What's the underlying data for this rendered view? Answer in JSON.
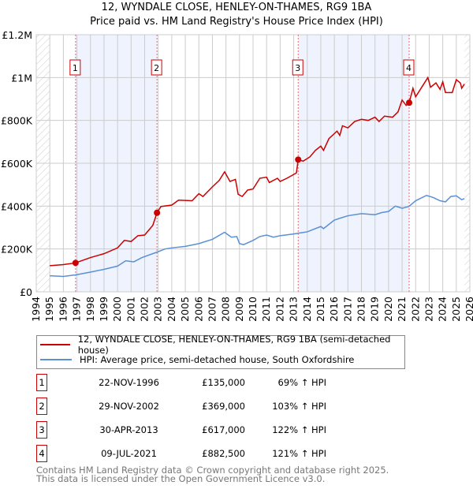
{
  "title": "12, WYNDALE CLOSE, HENLEY-ON-THAMES, RG9 1BA",
  "subtitle": "Price paid vs. HM Land Registry's House Price Index (HPI)",
  "chart_data": {
    "type": "line",
    "xlim": [
      1994,
      2026
    ],
    "ylim": [
      0,
      1200000
    ],
    "yticks": [
      {
        "v": 0,
        "label": "£0"
      },
      {
        "v": 200000,
        "label": "£200K"
      },
      {
        "v": 400000,
        "label": "£400K"
      },
      {
        "v": 600000,
        "label": "£600K"
      },
      {
        "v": 800000,
        "label": "£800K"
      },
      {
        "v": 1000000,
        "label": "£1M"
      },
      {
        "v": 1200000,
        "label": "£1.2M"
      }
    ],
    "xticks": [
      "1994",
      "1995",
      "1996",
      "1997",
      "1998",
      "1999",
      "2000",
      "2001",
      "2002",
      "2003",
      "2004",
      "2005",
      "2006",
      "2007",
      "2008",
      "2009",
      "2010",
      "2011",
      "2012",
      "2013",
      "2014",
      "2015",
      "2016",
      "2017",
      "2018",
      "2019",
      "2020",
      "2021",
      "2022",
      "2023",
      "2024",
      "2025",
      "2026"
    ],
    "grid": true,
    "shaded_ranges": [
      [
        1996.9,
        2002.91
      ],
      [
        2013.33,
        2021.52
      ]
    ],
    "hatched_ranges": [
      [
        1994,
        1995
      ],
      [
        2025.6,
        2026
      ]
    ],
    "series": [
      {
        "name": "12, WYNDALE CLOSE, HENLEY-ON-THAMES, RG9 1BA (semi-detached house)",
        "color": "#cc0000",
        "points": [
          [
            1995,
            122000
          ],
          [
            1996,
            127000
          ],
          [
            1996.9,
            135000
          ],
          [
            1998,
            160000
          ],
          [
            1999,
            178000
          ],
          [
            2000,
            205000
          ],
          [
            2000.5,
            240000
          ],
          [
            2001,
            235000
          ],
          [
            2001.5,
            262000
          ],
          [
            2002,
            265000
          ],
          [
            2002.6,
            310000
          ],
          [
            2002.91,
            369000
          ],
          [
            2003.2,
            398000
          ],
          [
            2004,
            405000
          ],
          [
            2004.5,
            428000
          ],
          [
            2005.5,
            425000
          ],
          [
            2006,
            458000
          ],
          [
            2006.3,
            445000
          ],
          [
            2007,
            490000
          ],
          [
            2007.5,
            520000
          ],
          [
            2007.9,
            560000
          ],
          [
            2008.3,
            515000
          ],
          [
            2008.7,
            525000
          ],
          [
            2008.9,
            455000
          ],
          [
            2009.2,
            445000
          ],
          [
            2009.6,
            475000
          ],
          [
            2010,
            480000
          ],
          [
            2010.5,
            530000
          ],
          [
            2011,
            535000
          ],
          [
            2011.2,
            510000
          ],
          [
            2011.8,
            530000
          ],
          [
            2012,
            515000
          ],
          [
            2012.5,
            530000
          ],
          [
            2013.2,
            555000
          ],
          [
            2013.33,
            617000
          ],
          [
            2013.7,
            610000
          ],
          [
            2014.2,
            630000
          ],
          [
            2014.6,
            660000
          ],
          [
            2015,
            680000
          ],
          [
            2015.2,
            660000
          ],
          [
            2015.6,
            715000
          ],
          [
            2016.2,
            750000
          ],
          [
            2016.4,
            730000
          ],
          [
            2016.6,
            775000
          ],
          [
            2017,
            765000
          ],
          [
            2017.5,
            795000
          ],
          [
            2018,
            805000
          ],
          [
            2018.5,
            800000
          ],
          [
            2019,
            815000
          ],
          [
            2019.3,
            795000
          ],
          [
            2019.7,
            820000
          ],
          [
            2020.3,
            815000
          ],
          [
            2020.7,
            840000
          ],
          [
            2021,
            895000
          ],
          [
            2021.3,
            870000
          ],
          [
            2021.52,
            882500
          ],
          [
            2021.8,
            950000
          ],
          [
            2022,
            910000
          ],
          [
            2022.5,
            960000
          ],
          [
            2022.9,
            1000000
          ],
          [
            2023.1,
            955000
          ],
          [
            2023.5,
            975000
          ],
          [
            2023.8,
            945000
          ],
          [
            2024,
            980000
          ],
          [
            2024.2,
            930000
          ],
          [
            2024.7,
            930000
          ],
          [
            2025,
            990000
          ],
          [
            2025.3,
            975000
          ],
          [
            2025.4,
            950000
          ],
          [
            2025.6,
            970000
          ]
        ]
      },
      {
        "name": "HPI: Average price, semi-detached house, South Oxfordshire",
        "color": "#5b8fd6",
        "points": [
          [
            1995,
            75000
          ],
          [
            1996,
            72000
          ],
          [
            1997,
            80000
          ],
          [
            1998,
            92000
          ],
          [
            1999,
            105000
          ],
          [
            2000,
            120000
          ],
          [
            2000.6,
            145000
          ],
          [
            2001.2,
            140000
          ],
          [
            2001.8,
            160000
          ],
          [
            2002.9,
            185000
          ],
          [
            2003.5,
            200000
          ],
          [
            2004,
            205000
          ],
          [
            2005,
            212000
          ],
          [
            2006,
            225000
          ],
          [
            2007,
            245000
          ],
          [
            2007.9,
            278000
          ],
          [
            2008.4,
            255000
          ],
          [
            2008.8,
            258000
          ],
          [
            2009,
            225000
          ],
          [
            2009.3,
            220000
          ],
          [
            2010,
            240000
          ],
          [
            2010.5,
            258000
          ],
          [
            2011,
            265000
          ],
          [
            2011.5,
            255000
          ],
          [
            2012,
            262000
          ],
          [
            2013,
            270000
          ],
          [
            2014,
            280000
          ],
          [
            2015,
            305000
          ],
          [
            2015.2,
            295000
          ],
          [
            2016,
            335000
          ],
          [
            2016.5,
            345000
          ],
          [
            2017,
            355000
          ],
          [
            2018,
            365000
          ],
          [
            2019,
            360000
          ],
          [
            2019.5,
            370000
          ],
          [
            2020,
            375000
          ],
          [
            2020.5,
            400000
          ],
          [
            2021,
            390000
          ],
          [
            2021.5,
            398000
          ],
          [
            2022,
            425000
          ],
          [
            2022.8,
            450000
          ],
          [
            2023.3,
            440000
          ],
          [
            2023.8,
            425000
          ],
          [
            2024.2,
            420000
          ],
          [
            2024.6,
            445000
          ],
          [
            2025,
            448000
          ],
          [
            2025.4,
            430000
          ],
          [
            2025.6,
            435000
          ]
        ]
      }
    ],
    "sales": [
      {
        "id": "1",
        "x": 1996.9,
        "price": 135000,
        "date": "22-NOV-1996",
        "price_label": "£135,000",
        "hpi": "69% ↑ HPI"
      },
      {
        "id": "2",
        "x": 2002.91,
        "price": 369000,
        "date": "29-NOV-2002",
        "price_label": "£369,000",
        "hpi": "103% ↑ HPI"
      },
      {
        "id": "3",
        "x": 2013.33,
        "price": 617000,
        "date": "30-APR-2013",
        "price_label": "£617,000",
        "hpi": "122% ↑ HPI"
      },
      {
        "id": "4",
        "x": 2021.52,
        "price": 882500,
        "date": "09-JUL-2021",
        "price_label": "£882,500",
        "hpi": "121% ↑ HPI"
      }
    ]
  },
  "legend": {
    "red": "12, WYNDALE CLOSE, HENLEY-ON-THAMES, RG9 1BA (semi-detached house)",
    "blue": "HPI: Average price, semi-detached house, South Oxfordshire"
  },
  "footer": {
    "line1": "Contains HM Land Registry data © Crown copyright and database right 2025.",
    "line2": "This data is licensed under the Open Government Licence v3.0."
  }
}
